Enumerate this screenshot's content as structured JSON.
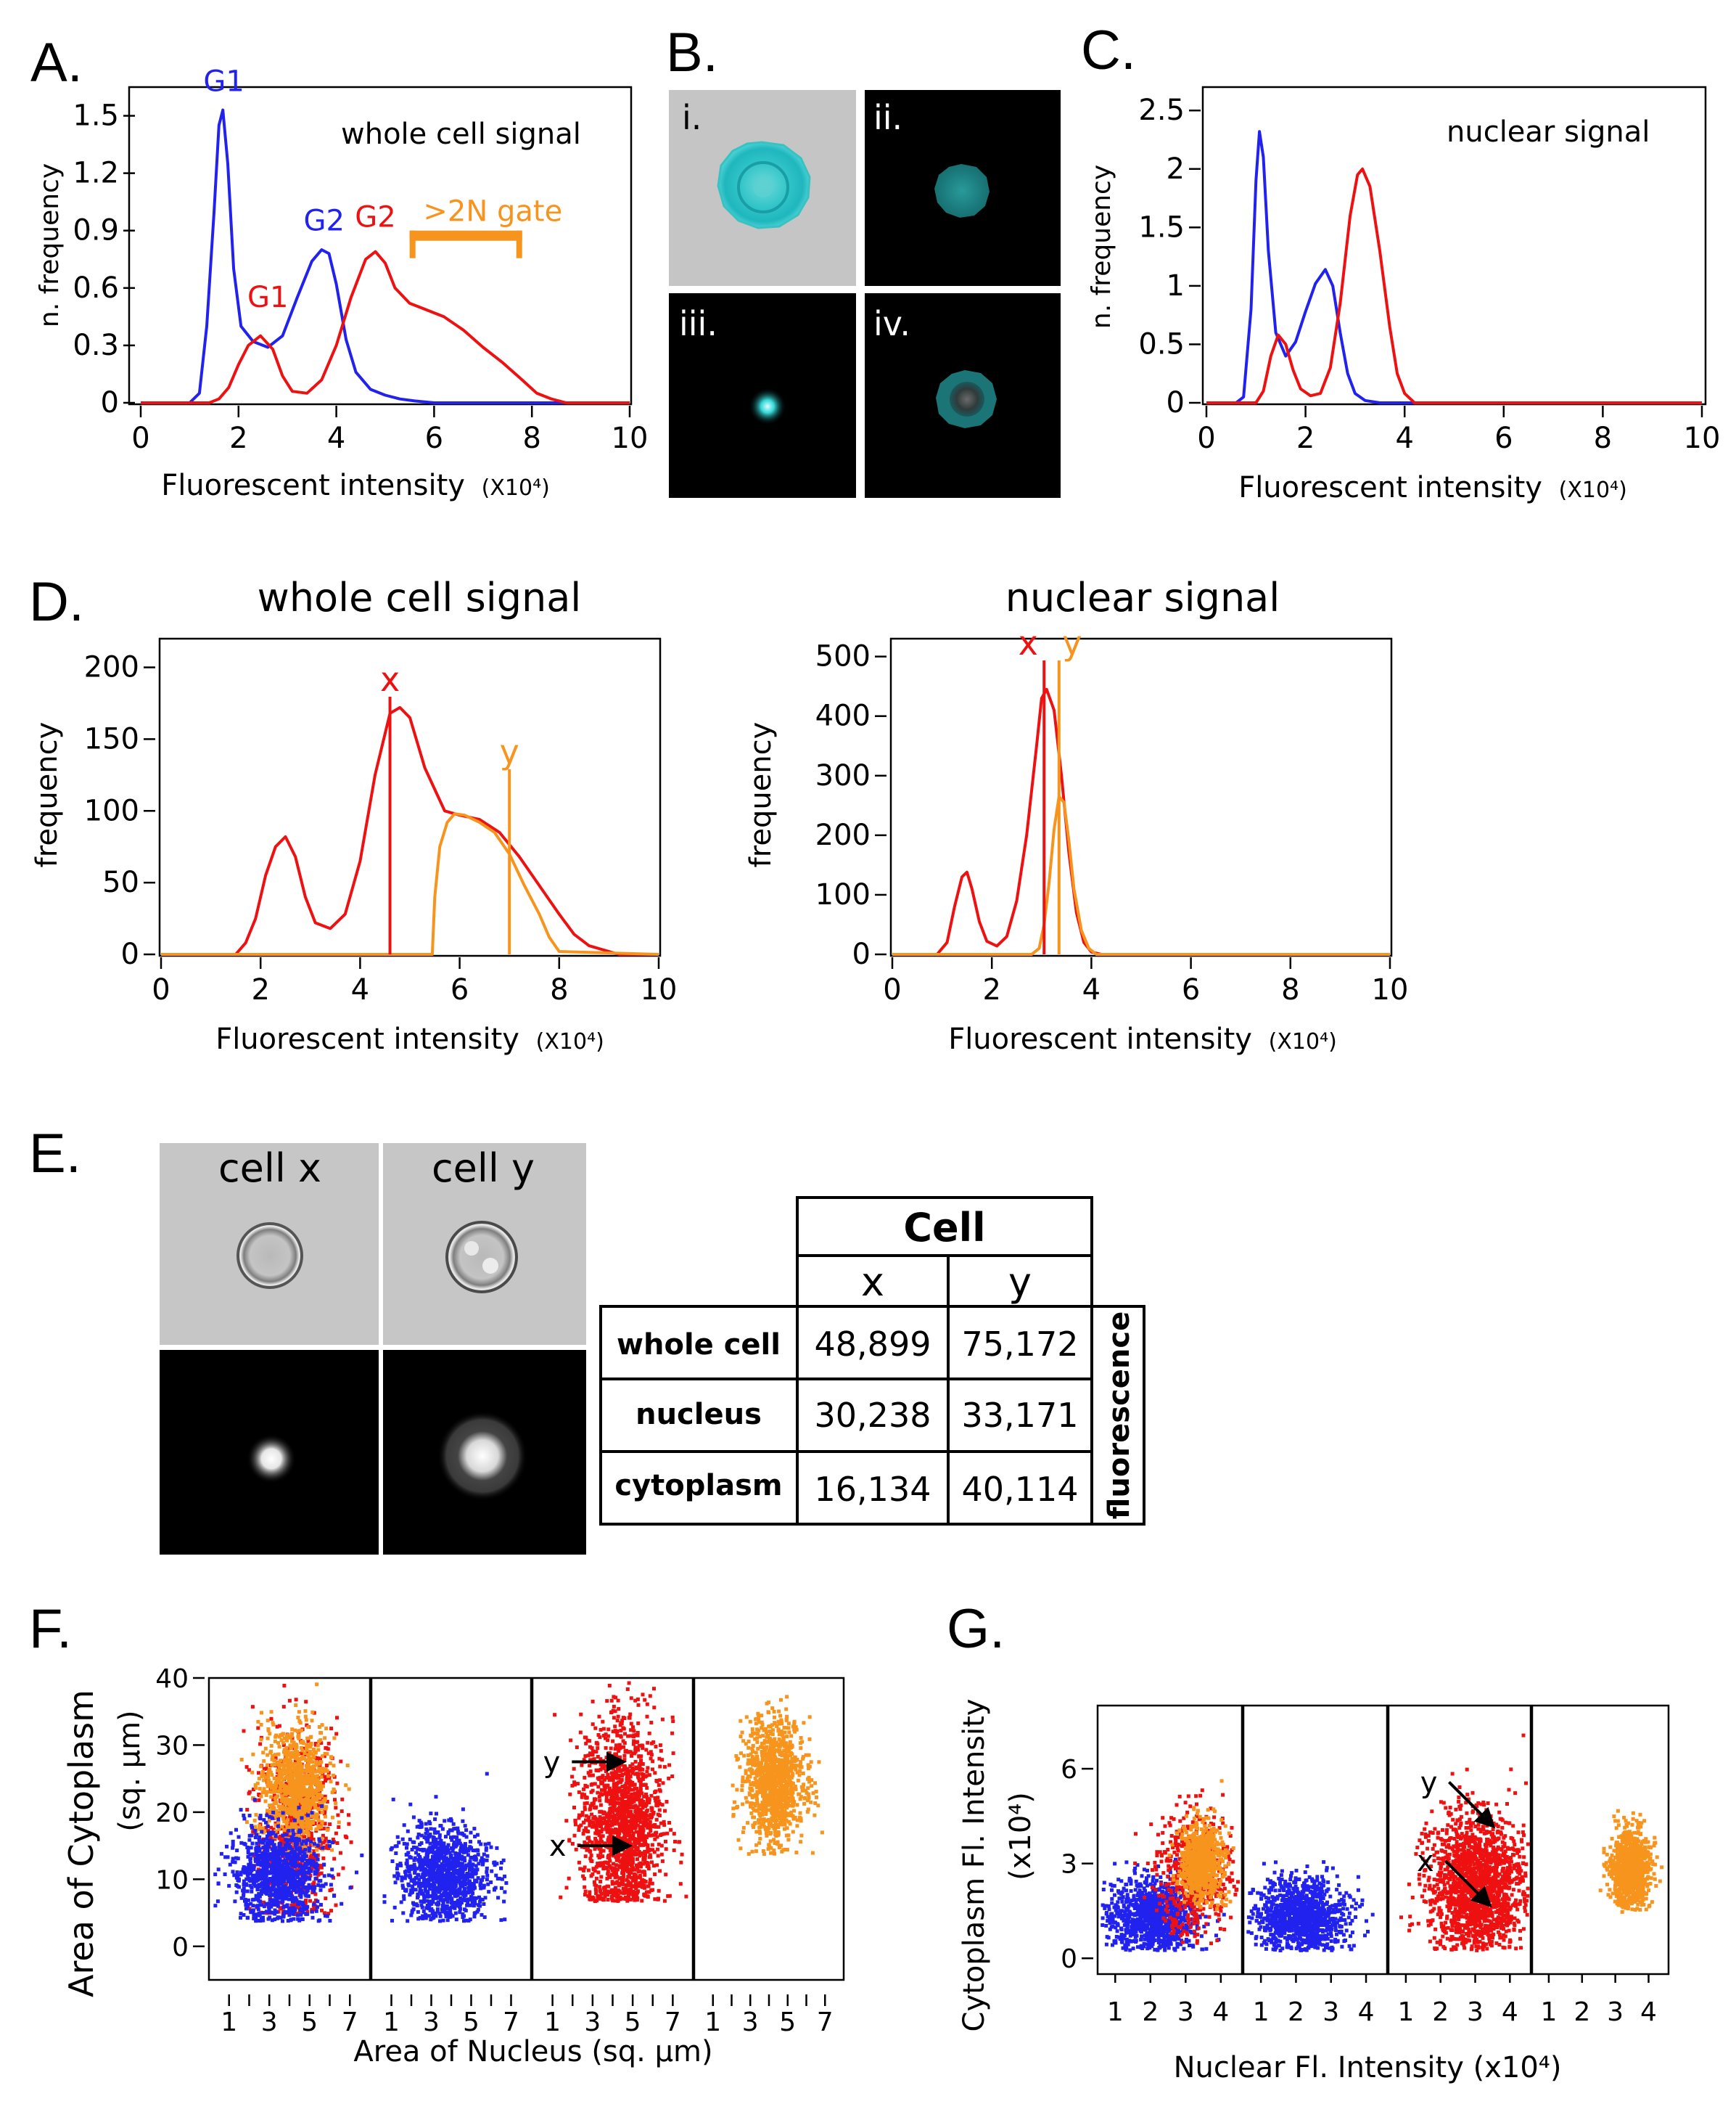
{
  "panels": {
    "A": "A.",
    "B": "B.",
    "C": "C.",
    "D": "D.",
    "E": "E.",
    "F": "F.",
    "G": "G."
  },
  "colors": {
    "blue": "#2222ee",
    "red": "#ee1111",
    "orange": "#f7941d",
    "cyan": "#22c4c4",
    "black": "#000000"
  },
  "x_label_main": "Fluorescent intensity",
  "x_label_unit": "(X10⁴)",
  "chart_data": [
    {
      "id": "A",
      "type": "line",
      "title": "whole cell signal",
      "xlabel": "Fluorescent intensity",
      "xunit": "(X10⁴)",
      "ylabel": "n. frequency",
      "xlim": [
        0,
        10
      ],
      "ylim": [
        0,
        1.65
      ],
      "xticks": [
        "0",
        "2",
        "4",
        "6",
        "8",
        "10"
      ],
      "yticks": [
        "0",
        "0.3",
        "0.6",
        "0.9",
        "1.2",
        "1.5"
      ],
      "series": [
        {
          "name": "blue",
          "color": "#2222ee",
          "x": [
            0,
            1.0,
            1.2,
            1.35,
            1.5,
            1.6,
            1.68,
            1.78,
            1.9,
            2.05,
            2.3,
            2.6,
            2.9,
            3.2,
            3.5,
            3.7,
            3.85,
            4.0,
            4.2,
            4.4,
            4.7,
            5.0,
            5.3,
            5.6,
            6,
            10
          ],
          "y": [
            0,
            0,
            0.05,
            0.4,
            1.0,
            1.45,
            1.53,
            1.25,
            0.7,
            0.4,
            0.32,
            0.29,
            0.35,
            0.55,
            0.74,
            0.8,
            0.78,
            0.62,
            0.33,
            0.16,
            0.07,
            0.04,
            0.02,
            0.01,
            0,
            0
          ]
        },
        {
          "name": "red",
          "color": "#ee1111",
          "x": [
            0,
            1.4,
            1.6,
            1.8,
            2.0,
            2.2,
            2.45,
            2.7,
            2.9,
            3.1,
            3.4,
            3.7,
            4.0,
            4.3,
            4.6,
            4.8,
            5.0,
            5.2,
            5.5,
            5.8,
            6.2,
            6.6,
            7.0,
            7.4,
            7.8,
            8.1,
            8.4,
            8.7,
            10
          ],
          "y": [
            0,
            0,
            0.02,
            0.08,
            0.2,
            0.3,
            0.35,
            0.28,
            0.14,
            0.06,
            0.05,
            0.12,
            0.3,
            0.55,
            0.75,
            0.79,
            0.73,
            0.6,
            0.52,
            0.49,
            0.45,
            0.38,
            0.29,
            0.21,
            0.12,
            0.05,
            0.02,
            0,
            0
          ]
        }
      ],
      "annotations": [
        {
          "text": "G1",
          "color": "#2222ee",
          "x": 1.7,
          "y": 1.63
        },
        {
          "text": "G1",
          "color": "#ee1111",
          "x": 2.6,
          "y": 0.5
        },
        {
          "text": "G2",
          "color": "#2222ee",
          "x": 3.75,
          "y": 0.9
        },
        {
          "text": "G2",
          "color": "#ee1111",
          "x": 4.8,
          "y": 0.92
        },
        {
          "text": ">2N gate",
          "color": "#f7941d",
          "x": 7.2,
          "y": 0.95
        }
      ],
      "gate": {
        "label": ">2N gate",
        "x0": 5.5,
        "x1": 7.8
      }
    },
    {
      "id": "C",
      "type": "line",
      "title": "nuclear signal",
      "xlabel": "Fluorescent intensity",
      "xunit": "(X10⁴)",
      "ylabel": "n. frequency",
      "xlim": [
        0,
        10
      ],
      "ylim": [
        0,
        2.7
      ],
      "xticks": [
        "0",
        "2",
        "4",
        "6",
        "8",
        "10"
      ],
      "yticks": [
        "0",
        "0.5",
        "1",
        "1.5",
        "2",
        "2.5"
      ],
      "series": [
        {
          "name": "blue",
          "color": "#2222ee",
          "x": [
            0,
            0.6,
            0.75,
            0.9,
            1.0,
            1.07,
            1.15,
            1.25,
            1.4,
            1.6,
            1.8,
            2.0,
            2.2,
            2.4,
            2.55,
            2.7,
            2.85,
            3.0,
            3.2,
            3.5,
            10
          ],
          "y": [
            0,
            0,
            0.05,
            0.8,
            1.9,
            2.32,
            2.1,
            1.3,
            0.6,
            0.4,
            0.52,
            0.78,
            1.02,
            1.14,
            1.0,
            0.6,
            0.25,
            0.08,
            0.02,
            0,
            0
          ]
        },
        {
          "name": "red",
          "color": "#ee1111",
          "x": [
            0,
            1.0,
            1.15,
            1.3,
            1.45,
            1.6,
            1.75,
            1.9,
            2.1,
            2.3,
            2.5,
            2.7,
            2.9,
            3.05,
            3.15,
            3.3,
            3.5,
            3.7,
            3.85,
            4.0,
            4.2,
            10
          ],
          "y": [
            0,
            0,
            0.1,
            0.4,
            0.58,
            0.5,
            0.28,
            0.12,
            0.06,
            0.08,
            0.3,
            0.85,
            1.6,
            1.95,
            2.0,
            1.85,
            1.3,
            0.65,
            0.25,
            0.08,
            0,
            0
          ]
        }
      ]
    },
    {
      "id": "D-left",
      "type": "line",
      "title": "whole cell signal",
      "xlabel": "Fluorescent intensity",
      "xunit": "(X10⁴)",
      "ylabel": "frequency",
      "xlim": [
        0,
        10
      ],
      "ylim": [
        0,
        220
      ],
      "xticks": [
        "0",
        "2",
        "4",
        "6",
        "8",
        "10"
      ],
      "yticks": [
        "0",
        "50",
        "100",
        "150",
        "200"
      ],
      "series": [
        {
          "name": "red",
          "color": "#ee1111",
          "x": [
            0,
            1.5,
            1.7,
            1.9,
            2.1,
            2.3,
            2.5,
            2.7,
            2.9,
            3.1,
            3.4,
            3.7,
            4.0,
            4.3,
            4.6,
            4.8,
            5.0,
            5.3,
            5.7,
            6.0,
            6.4,
            6.8,
            7.2,
            7.6,
            8.0,
            8.3,
            8.6,
            9.0,
            9.2,
            10
          ],
          "y": [
            0,
            0,
            8,
            25,
            55,
            75,
            82,
            68,
            40,
            22,
            18,
            28,
            65,
            125,
            168,
            172,
            165,
            130,
            100,
            97,
            94,
            85,
            68,
            48,
            28,
            14,
            6,
            2,
            0,
            0
          ]
        },
        {
          "name": "orange",
          "color": "#f7941d",
          "x": [
            0,
            5.45,
            5.5,
            5.6,
            5.75,
            5.9,
            6.1,
            6.4,
            6.7,
            7.0,
            7.3,
            7.6,
            7.8,
            8.0,
            10
          ],
          "y": [
            0,
            0,
            40,
            75,
            92,
            98,
            97,
            92,
            85,
            70,
            48,
            28,
            12,
            2,
            0
          ]
        }
      ],
      "markers": [
        {
          "label": "x",
          "color": "#ee1111",
          "x": 4.6
        },
        {
          "label": "y",
          "color": "#f7941d",
          "x": 7.0
        }
      ]
    },
    {
      "id": "D-right",
      "type": "line",
      "title": "nuclear signal",
      "xlabel": "Fluorescent intensity",
      "xunit": "(X10⁴)",
      "ylabel": "frequency",
      "xlim": [
        0,
        10
      ],
      "ylim": [
        0,
        530
      ],
      "xticks": [
        "0",
        "2",
        "4",
        "6",
        "8",
        "10"
      ],
      "yticks": [
        "0",
        "100",
        "200",
        "300",
        "400",
        "500"
      ],
      "series": [
        {
          "name": "red",
          "color": "#ee1111",
          "x": [
            0,
            0.9,
            1.1,
            1.25,
            1.4,
            1.5,
            1.6,
            1.75,
            1.9,
            2.1,
            2.3,
            2.5,
            2.7,
            2.9,
            3.0,
            3.1,
            3.25,
            3.4,
            3.55,
            3.7,
            3.85,
            4.0,
            4.2,
            10
          ],
          "y": [
            0,
            0,
            20,
            80,
            130,
            138,
            110,
            55,
            22,
            14,
            30,
            90,
            200,
            350,
            430,
            445,
            410,
            300,
            170,
            70,
            20,
            4,
            0,
            0
          ]
        },
        {
          "name": "orange",
          "color": "#f7941d",
          "x": [
            0,
            2.8,
            2.95,
            3.05,
            3.15,
            3.25,
            3.35,
            3.45,
            3.55,
            3.65,
            3.8,
            3.95,
            4.1,
            10
          ],
          "y": [
            0,
            0,
            10,
            50,
            120,
            210,
            265,
            255,
            190,
            110,
            40,
            10,
            0,
            0
          ]
        }
      ],
      "markers": [
        {
          "label": "x",
          "color": "#ee1111",
          "x": 3.05
        },
        {
          "label": "y",
          "color": "#f7941d",
          "x": 3.35
        }
      ]
    },
    {
      "id": "E-table",
      "type": "table",
      "header": "Cell",
      "columns": [
        "x",
        "y"
      ],
      "rows": [
        {
          "label": "whole cell",
          "values": [
            "48,899",
            "75,172"
          ]
        },
        {
          "label": "nucleus",
          "values": [
            "30,238",
            "33,171"
          ]
        },
        {
          "label": "cytoplasm",
          "values": [
            "16,134",
            "40,114"
          ]
        }
      ],
      "side_label": "fluorescence"
    },
    {
      "id": "F",
      "type": "scatter",
      "xlabel": "Area of Nucleus (sq. µm)",
      "ylabel": "Area of Cytoplasm",
      "ylabel_unit": "(sq. µm)",
      "ylim": [
        -5,
        40
      ],
      "xlim": [
        0,
        8
      ],
      "yticks": [
        "0",
        "10",
        "20",
        "30",
        "40"
      ],
      "xticks": [
        "1",
        "3",
        "5",
        "7"
      ],
      "subpanels": [
        {
          "clusters": [
            {
              "color": "#ee1111",
              "cx": 4.2,
              "cy": 18,
              "sx": 1.0,
              "sy": 8,
              "n": 700,
              "ymin": 5
            },
            {
              "color": "#f7941d",
              "cx": 4.2,
              "cy": 24,
              "sx": 0.8,
              "sy": 4.5,
              "n": 900,
              "ymin": 14
            },
            {
              "color": "#2222ee",
              "cx": 3.3,
              "cy": 11,
              "sx": 1.1,
              "sy": 3.5,
              "n": 1000,
              "ymin": 4
            }
          ]
        },
        {
          "clusters": [
            {
              "color": "#2222ee",
              "cx": 3.6,
              "cy": 11,
              "sx": 1.1,
              "sy": 3.5,
              "n": 1100,
              "ymin": 4
            }
          ]
        },
        {
          "clusters": [
            {
              "color": "#ee1111",
              "cx": 4.4,
              "cy": 19,
              "sx": 1.0,
              "sy": 7.5,
              "n": 1600,
              "ymin": 7
            }
          ],
          "arrows": [
            {
              "label": "y",
              "x": 4.5,
              "y": 27.5
            },
            {
              "label": "x",
              "x": 4.8,
              "y": 15
            }
          ]
        },
        {
          "clusters": [
            {
              "color": "#f7941d",
              "cx": 4.2,
              "cy": 25,
              "sx": 0.8,
              "sy": 4.5,
              "n": 1100,
              "ymin": 14
            }
          ]
        }
      ]
    },
    {
      "id": "G",
      "type": "scatter",
      "xlabel": "Nuclear Fl. Intensity (x10⁴)",
      "ylabel": "Cytoplasm Fl. Intensity",
      "ylabel_unit": "(x10⁴)",
      "ylim": [
        -0.5,
        8
      ],
      "xlim": [
        0.5,
        4.6
      ],
      "yticks": [
        "0",
        "3",
        "6"
      ],
      "xticks": [
        "1",
        "2",
        "3",
        "4"
      ],
      "subpanels": [
        {
          "clusters": [
            {
              "color": "#2222ee",
              "cx": 2.0,
              "cy": 1.4,
              "sx": 0.65,
              "sy": 0.6,
              "n": 1000,
              "ymin": 0.3
            },
            {
              "color": "#ee1111",
              "cx": 3.2,
              "cy": 2.8,
              "sx": 0.55,
              "sy": 1.0,
              "n": 500,
              "ymin": 0.5
            },
            {
              "color": "#f7941d",
              "cx": 3.4,
              "cy": 3.1,
              "sx": 0.3,
              "sy": 0.6,
              "n": 700,
              "ymin": 1.5
            }
          ]
        },
        {
          "clusters": [
            {
              "color": "#2222ee",
              "cx": 2.1,
              "cy": 1.4,
              "sx": 0.65,
              "sy": 0.6,
              "n": 1100,
              "ymin": 0.3
            }
          ]
        },
        {
          "clusters": [
            {
              "color": "#ee1111",
              "cx": 3.0,
              "cy": 2.4,
              "sx": 0.7,
              "sy": 1.1,
              "n": 1700,
              "ymin": 0.3
            }
          ],
          "arrows": [
            {
              "label": "y",
              "x": 3.5,
              "y": 4.2
            },
            {
              "label": "x",
              "x": 3.4,
              "y": 1.7
            }
          ]
        },
        {
          "clusters": [
            {
              "color": "#f7941d",
              "cx": 3.4,
              "cy": 2.9,
              "sx": 0.3,
              "sy": 0.6,
              "n": 1000,
              "ymin": 1.5
            }
          ]
        }
      ]
    }
  ],
  "panel_B": {
    "labels": [
      "i.",
      "ii.",
      "iii.",
      "iv."
    ]
  },
  "panel_E": {
    "cell_x": "cell x",
    "cell_y": "cell y"
  }
}
